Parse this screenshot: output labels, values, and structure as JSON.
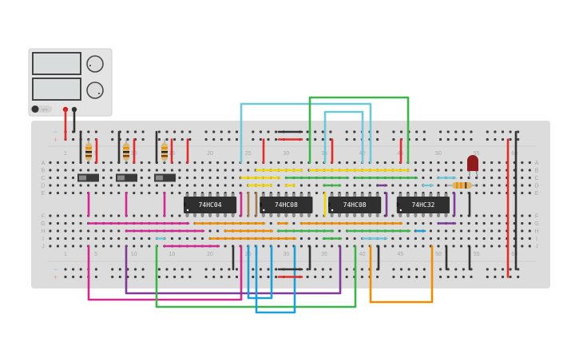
{
  "power_supply": {
    "button_label": "OFF",
    "terminal_colors": {
      "positive": "#d92323",
      "negative": "#333333"
    }
  },
  "breadboard": {
    "rail_signs": {
      "minus": "−",
      "plus": "+"
    },
    "row_labels_top": [
      "A",
      "B",
      "C",
      "D",
      "E"
    ],
    "row_labels_bottom": [
      "F",
      "G",
      "H",
      "I",
      "J"
    ],
    "column_numbers": [
      "1",
      "5",
      "10",
      "15",
      "20",
      "25",
      "30",
      "35",
      "40",
      "45",
      "50",
      "55",
      "60"
    ]
  },
  "chips": [
    {
      "label": "74HC04"
    },
    {
      "label": "74HC08"
    },
    {
      "label": "74HC08"
    },
    {
      "label": "74HC32"
    }
  ],
  "components": {
    "switches": 3,
    "pullup_resistors": 3,
    "led_color": "#8e1c1c",
    "led_resistor": 1
  },
  "wire_colors": {
    "red": "#e22b2b",
    "black": "#333333",
    "cyan": "#6fc7da",
    "green": "#3cb44a",
    "yellow": "#f1d400",
    "orange": "#f08c00",
    "magenta": "#d3288f",
    "purple": "#7d3a98",
    "blue": "#1b9fd6",
    "brown": "#a47a4c"
  }
}
